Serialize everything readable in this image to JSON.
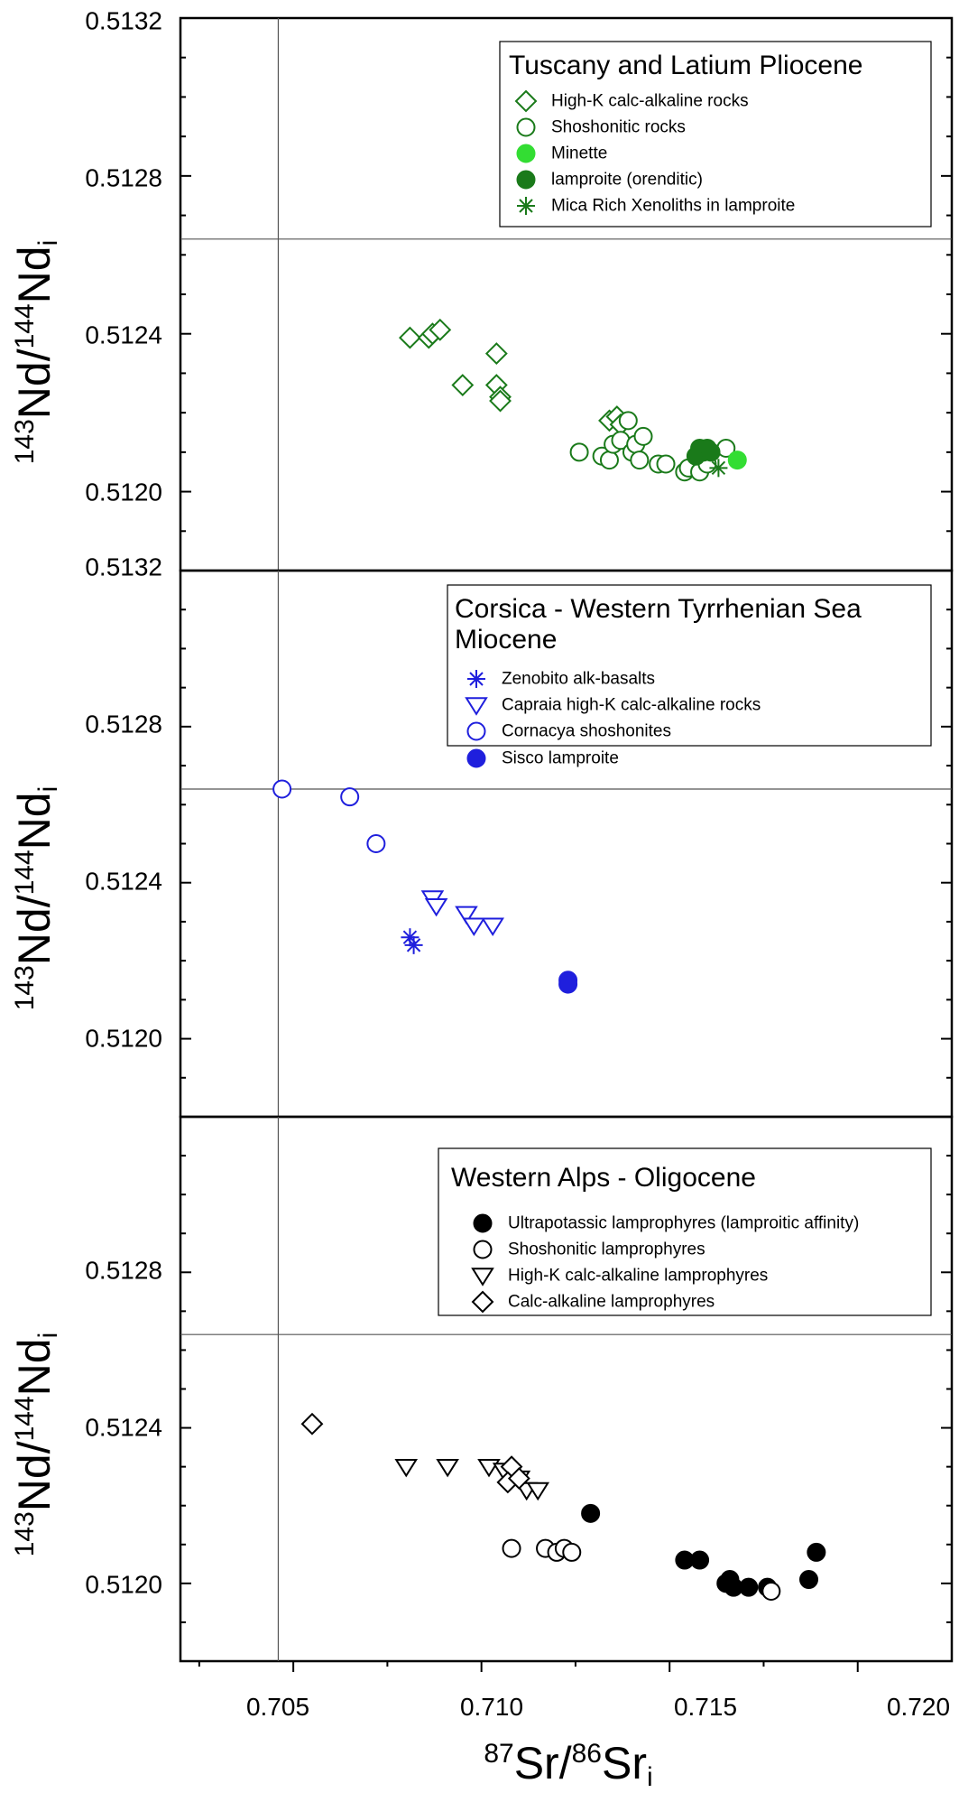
{
  "chart_data": [
    {
      "type": "scatter",
      "xlim": [
        0.702,
        0.7225
      ],
      "ylim": [
        0.5118,
        0.5132
      ],
      "yticks": [
        "0.5120",
        "0.5124",
        "0.5128",
        "0.5132"
      ],
      "ylabel": {
        "a": "143",
        "b": "Nd/",
        "c": "144",
        "d": "Nd",
        "e": "i"
      },
      "ref_lines": {
        "x": 0.7046,
        "y": 0.51264
      },
      "legend": {
        "title": [
          "Tuscany and Latium Pliocene"
        ],
        "entries": [
          {
            "label": "High-K calc-alkaline rocks",
            "marker": "diamond-open",
            "color": "#1a7a1a"
          },
          {
            "label": "Shoshonitic rocks",
            "marker": "circle-open",
            "color": "#1a7a1a"
          },
          {
            "label": "Minette",
            "marker": "circle-filled",
            "color": "#33dd33"
          },
          {
            "label": "lamproite (orenditic)",
            "marker": "circle-filled",
            "color": "#1a7a1a"
          },
          {
            "label": "Mica Rich Xenoliths in lamproite",
            "marker": "asterisk",
            "color": "#1a7a1a"
          }
        ]
      },
      "series": [
        {
          "name": "High-K calc-alkaline rocks",
          "marker": "diamond-open",
          "color": "#1a7a1a",
          "points": [
            [
              0.7081,
              0.51239
            ],
            [
              0.7086,
              0.51239
            ],
            [
              0.7087,
              0.5124
            ],
            [
              0.7089,
              0.51241
            ],
            [
              0.7095,
              0.51227
            ],
            [
              0.7104,
              0.51235
            ],
            [
              0.7104,
              0.51227
            ],
            [
              0.7105,
              0.51224
            ],
            [
              0.7105,
              0.51223
            ],
            [
              0.7134,
              0.51218
            ],
            [
              0.7136,
              0.51219
            ],
            [
              0.7137,
              0.51217
            ]
          ]
        },
        {
          "name": "Shoshonitic rocks",
          "marker": "circle-open",
          "color": "#1a7a1a",
          "points": [
            [
              0.7126,
              0.5121
            ],
            [
              0.7132,
              0.51209
            ],
            [
              0.7134,
              0.51208
            ],
            [
              0.7135,
              0.51212
            ],
            [
              0.7137,
              0.51213
            ],
            [
              0.7139,
              0.51218
            ],
            [
              0.714,
              0.5121
            ],
            [
              0.7141,
              0.51212
            ],
            [
              0.7142,
              0.51208
            ],
            [
              0.7143,
              0.51214
            ],
            [
              0.7147,
              0.51207
            ],
            [
              0.7149,
              0.51207
            ],
            [
              0.7154,
              0.51205
            ],
            [
              0.7155,
              0.51206
            ],
            [
              0.7158,
              0.51205
            ],
            [
              0.716,
              0.51207
            ],
            [
              0.7165,
              0.51211
            ]
          ]
        },
        {
          "name": "Minette",
          "marker": "circle-filled",
          "color": "#33dd33",
          "points": [
            [
              0.7168,
              0.51208
            ]
          ]
        },
        {
          "name": "lamproite (orenditic)",
          "marker": "circle-filled",
          "color": "#1a7a1a",
          "points": [
            [
              0.7157,
              0.51209
            ],
            [
              0.7158,
              0.51211
            ],
            [
              0.7159,
              0.5121
            ],
            [
              0.716,
              0.51211
            ],
            [
              0.7161,
              0.5121
            ]
          ]
        },
        {
          "name": "Mica Rich Xenoliths in lamproite",
          "marker": "asterisk",
          "color": "#1a7a1a",
          "points": [
            [
              0.7163,
              0.51206
            ]
          ]
        }
      ]
    },
    {
      "type": "scatter",
      "xlim": [
        0.702,
        0.7225
      ],
      "ylim": [
        0.5118,
        0.5132
      ],
      "yticks": [
        "0.5120",
        "0.5124",
        "0.5128",
        "0.5132"
      ],
      "ylabel": {
        "a": "143",
        "b": "Nd/",
        "c": "144",
        "d": "Nd",
        "e": "i"
      },
      "ref_lines": {
        "x": 0.7046,
        "y": 0.51264
      },
      "legend": {
        "title": [
          "Corsica - Western Tyrrhenian Sea",
          "Miocene"
        ],
        "entries": [
          {
            "label": "Zenobito alk-basalts",
            "marker": "asterisk",
            "color": "#1f1fdd"
          },
          {
            "label": "Capraia high-K calc-alkaline rocks",
            "marker": "triangle-down-open",
            "color": "#1f1fdd"
          },
          {
            "label": "Cornacya shoshonites",
            "marker": "circle-open",
            "color": "#1f1fdd"
          },
          {
            "label": "Sisco lamproite",
            "marker": "circle-filled",
            "color": "#1f1fdd"
          }
        ]
      },
      "series": [
        {
          "name": "Zenobito alk-basalts",
          "marker": "asterisk",
          "color": "#1f1fdd",
          "points": [
            [
              0.7081,
              0.51226
            ],
            [
              0.7082,
              0.51224
            ]
          ]
        },
        {
          "name": "Capraia high-K calc-alkaline rocks",
          "marker": "triangle-down-open",
          "color": "#1f1fdd",
          "points": [
            [
              0.7087,
              0.51236
            ],
            [
              0.7088,
              0.51234
            ],
            [
              0.7096,
              0.51232
            ],
            [
              0.7098,
              0.51229
            ],
            [
              0.7103,
              0.51229
            ]
          ]
        },
        {
          "name": "Cornacya shoshonites",
          "marker": "circle-open",
          "color": "#1f1fdd",
          "points": [
            [
              0.7047,
              0.51264
            ],
            [
              0.7065,
              0.51262
            ],
            [
              0.7072,
              0.5125
            ]
          ]
        },
        {
          "name": "Sisco lamproite",
          "marker": "circle-filled",
          "color": "#1f1fdd",
          "points": [
            [
              0.7123,
              0.51215
            ],
            [
              0.7123,
              0.51214
            ]
          ]
        }
      ]
    },
    {
      "type": "scatter",
      "xlim": [
        0.702,
        0.7225
      ],
      "ylim": [
        0.5118,
        0.5132
      ],
      "yticks": [
        "0.5120",
        "0.5124",
        "0.5128",
        "0.5132"
      ],
      "xticks": [
        "0.705",
        "0.710",
        "0.715",
        "0.720"
      ],
      "ylabel": {
        "a": "143",
        "b": "Nd/",
        "c": "144",
        "d": "Nd",
        "e": "i"
      },
      "xlabel": {
        "a": "87",
        "b": "Sr/",
        "c": "86",
        "d": "Sr",
        "e": "i"
      },
      "ref_lines": {
        "x": 0.7046,
        "y": 0.51264
      },
      "legend": {
        "title": [
          "Western Alps - Oligocene"
        ],
        "entries": [
          {
            "label": "Ultrapotassic lamprophyres (lamproitic affinity)",
            "marker": "circle-filled",
            "color": "#000000"
          },
          {
            "label": "Shoshonitic lamprophyres",
            "marker": "circle-open",
            "color": "#000000"
          },
          {
            "label": "High-K calc-alkaline lamprophyres",
            "marker": "triangle-down-open",
            "color": "#000000"
          },
          {
            "label": "Calc-alkaline lamprophyres",
            "marker": "diamond-open",
            "color": "#000000"
          }
        ]
      },
      "series": [
        {
          "name": "Ultrapotassic lamprophyres (lamproitic affinity)",
          "marker": "circle-filled",
          "color": "#000000",
          "points": [
            [
              0.7129,
              0.51218
            ],
            [
              0.7154,
              0.51206
            ],
            [
              0.7158,
              0.51206
            ],
            [
              0.7165,
              0.512
            ],
            [
              0.7166,
              0.51201
            ],
            [
              0.7167,
              0.51199
            ],
            [
              0.7171,
              0.51199
            ],
            [
              0.7176,
              0.51199
            ],
            [
              0.7187,
              0.51201
            ],
            [
              0.7189,
              0.51208
            ]
          ]
        },
        {
          "name": "Shoshonitic lamprophyres",
          "marker": "circle-open",
          "color": "#000000",
          "points": [
            [
              0.7108,
              0.51209
            ],
            [
              0.7117,
              0.51209
            ],
            [
              0.712,
              0.51208
            ],
            [
              0.7122,
              0.51209
            ],
            [
              0.7124,
              0.51208
            ],
            [
              0.7177,
              0.51198
            ]
          ]
        },
        {
          "name": "High-K calc-alkaline lamprophyres",
          "marker": "triangle-down-open",
          "color": "#000000",
          "points": [
            [
              0.708,
              0.5123
            ],
            [
              0.7091,
              0.5123
            ],
            [
              0.7102,
              0.5123
            ],
            [
              0.7106,
              0.51229
            ],
            [
              0.711,
              0.51227
            ],
            [
              0.7112,
              0.51224
            ],
            [
              0.7115,
              0.51224
            ]
          ]
        },
        {
          "name": "Calc-alkaline lamprophyres",
          "marker": "diamond-open",
          "color": "#000000",
          "points": [
            [
              0.7055,
              0.51241
            ],
            [
              0.7108,
              0.5123
            ],
            [
              0.7107,
              0.51226
            ],
            [
              0.711,
              0.51227
            ]
          ]
        }
      ]
    }
  ]
}
